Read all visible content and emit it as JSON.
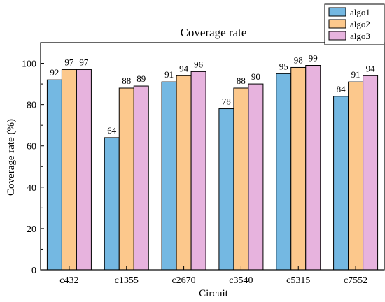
{
  "chart_data": {
    "type": "bar",
    "title": "Coverage rate",
    "xlabel": "Circuit",
    "ylabel": "Coverage rate (%)",
    "categories": [
      "c432",
      "c1355",
      "c2670",
      "c3540",
      "c5315",
      "c7552"
    ],
    "series": [
      {
        "name": "algo1",
        "color": "#74b8e2",
        "values": [
          92,
          64,
          91,
          78,
          95,
          84
        ]
      },
      {
        "name": "algo2",
        "color": "#fcc88c",
        "values": [
          97,
          88,
          94,
          88,
          98,
          91
        ]
      },
      {
        "name": "algo3",
        "color": "#e7b3de",
        "values": [
          97,
          89,
          96,
          90,
          99,
          94
        ]
      }
    ],
    "ylim": [
      0,
      110
    ],
    "yticks": [
      0,
      20,
      40,
      60,
      80,
      100
    ],
    "data_labels": [
      [
        "92",
        "64",
        "91",
        "78",
        "95",
        "84"
      ],
      [
        "97",
        "88",
        "94",
        "88",
        "98",
        "91"
      ],
      [
        "97",
        "89",
        "96",
        "90",
        "99",
        "94"
      ]
    ],
    "legend_position": "top-right",
    "grid": false
  }
}
